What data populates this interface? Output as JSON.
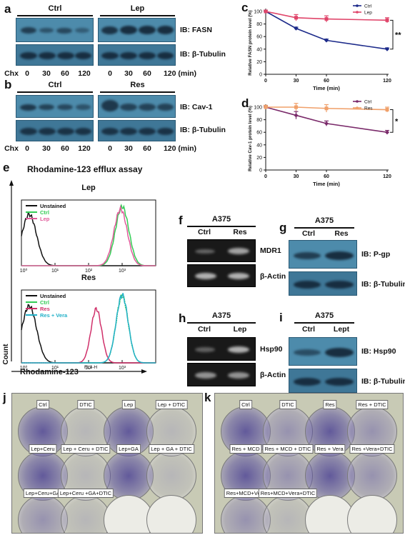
{
  "panels": {
    "a": {
      "letter": "a",
      "groups": [
        "Ctrl",
        "Lep"
      ],
      "labels": [
        "IB: FASN",
        "IB: β-Tubulin"
      ],
      "chx": "Chx",
      "lanes": [
        "0",
        "30",
        "60",
        "120",
        "0",
        "30",
        "60",
        "120 (min)"
      ]
    },
    "b": {
      "letter": "b",
      "groups": [
        "Ctrl",
        "Res"
      ],
      "labels": [
        "IB: Cav-1",
        "IB: β-Tubulin"
      ],
      "chx": "Chx",
      "lanes": [
        "0",
        "30",
        "60",
        "120",
        "0",
        "30",
        "60",
        "120 (min)"
      ]
    },
    "e": {
      "letter": "e",
      "title": "Rhodamine-123 efflux assay",
      "top_title": "Lep",
      "bottom_title": "Res",
      "ylabel": "Count",
      "xlabel": "Rhodamine-123",
      "fl_label": "FL1-H",
      "ticks_top": [
        "10⁰",
        "10¹",
        "10²",
        "10³"
      ],
      "ticks_bottom": [
        "10⁰",
        "10¹",
        "10²",
        "10³"
      ]
    },
    "f": {
      "letter": "f",
      "cell": "A375",
      "lanes": [
        "Ctrl",
        "Res"
      ],
      "labels": [
        "MDR1",
        "β-Actin"
      ]
    },
    "g": {
      "letter": "g",
      "cell": "A375",
      "lanes": [
        "Ctrl",
        "Res"
      ],
      "labels": [
        "IB: P-gp",
        "IB: β-Tubulin"
      ]
    },
    "h": {
      "letter": "h",
      "cell": "A375",
      "lanes": [
        "Ctrl",
        "Lep"
      ],
      "labels": [
        "Hsp90",
        "β-Actin"
      ]
    },
    "i": {
      "letter": "i",
      "cell": "A375",
      "lanes": [
        "Ctrl",
        "Lept"
      ],
      "labels": [
        "IB: Hsp90",
        "IB: β-Tubulin"
      ]
    },
    "j": {
      "letter": "j",
      "wells": [
        [
          "Ctrl",
          "DTIC",
          "Lep",
          "Lep + DTIC"
        ],
        [
          "Lep+Ceru",
          "Lep + Ceru + DTIC",
          "Lep+GA",
          "Lep + GA + DTIC"
        ],
        [
          "Lep+Ceru+GA",
          "Lep+Ceru +GA+DTIC",
          "",
          ""
        ]
      ]
    },
    "k": {
      "letter": "k",
      "wells": [
        [
          "Ctrl",
          "DTIC",
          "Res",
          "Res + DTIC"
        ],
        [
          "Res + MCD",
          "Res + MCD + DTIC",
          "Res + Vera",
          "Res +Vera+DTIC"
        ],
        [
          "Res+MCD+Vera",
          "Res+MCD+Vera+DTIC",
          "",
          ""
        ]
      ]
    }
  },
  "colors": {
    "ctrl_line": "#1c2a8a",
    "lep_line": "#e0456a",
    "ctrl2_line": "#7a2a6a",
    "res_line": "#f0a06a",
    "unstained": "#111111",
    "ctrl_hist": "#33cc55",
    "lep_hist": "#e05a9a",
    "res_hist": "#d0306a",
    "vera_hist": "#22b0c8"
  },
  "chart_data": [
    {
      "id": "c",
      "letter": "c",
      "type": "line",
      "ylabel": "Relative FASN protein level (%)",
      "xlabel": "Time (min)",
      "x": [
        0,
        30,
        60,
        120
      ],
      "xticks": [
        0,
        30,
        60,
        120
      ],
      "yticks": [
        0,
        20,
        40,
        60,
        80,
        100
      ],
      "ylim": [
        0,
        100
      ],
      "xlim": [
        0,
        120
      ],
      "annotation": "**",
      "legend": "top-right",
      "series": [
        {
          "name": "Ctrl",
          "values": [
            100,
            73,
            54,
            40
          ],
          "err": [
            2,
            2,
            2,
            2
          ],
          "color": "#1c2a8a",
          "marker": "diamond"
        },
        {
          "name": "Lep",
          "values": [
            100,
            90,
            88,
            86
          ],
          "err": [
            2,
            5,
            5,
            4
          ],
          "color": "#e0456a",
          "marker": "square"
        }
      ]
    },
    {
      "id": "d",
      "letter": "d",
      "type": "line",
      "ylabel": "Relative Cav-1 protein level (%)",
      "xlabel": "Time (min)",
      "x": [
        0,
        30,
        60,
        120
      ],
      "xticks": [
        0,
        30,
        60,
        120
      ],
      "yticks": [
        0,
        20,
        40,
        60,
        80,
        100
      ],
      "ylim": [
        0,
        100
      ],
      "xlim": [
        0,
        120
      ],
      "annotation": "*",
      "legend": "top-right",
      "series": [
        {
          "name": "Ctrl",
          "values": [
            100,
            87,
            74,
            60
          ],
          "err": [
            2,
            6,
            4,
            3
          ],
          "color": "#7a2a6a",
          "marker": "diamond"
        },
        {
          "name": "Res",
          "values": [
            100,
            100,
            98,
            96
          ],
          "err": [
            3,
            6,
            6,
            4
          ],
          "color": "#f0a06a",
          "marker": "square"
        }
      ]
    },
    {
      "id": "e_top",
      "type": "histogram",
      "xscale": "log",
      "xlim": [
        1,
        10000
      ],
      "legend": "top-left",
      "series": [
        {
          "name": "Unstained",
          "peak": 1.7,
          "width": 0.22,
          "height": 0.78,
          "color": "#111111"
        },
        {
          "name": "Ctrl",
          "peak": 1000,
          "width": 0.2,
          "height": 0.9,
          "color": "#33cc55"
        },
        {
          "name": "Lep",
          "peak": 900,
          "width": 0.2,
          "height": 0.86,
          "color": "#e05a9a"
        }
      ]
    },
    {
      "id": "e_bottom",
      "type": "histogram",
      "xscale": "log",
      "xlim": [
        1,
        10000
      ],
      "legend": "top-left",
      "series": [
        {
          "name": "Unstained",
          "peak": 1.7,
          "width": 0.22,
          "height": 0.78,
          "color": "#111111"
        },
        {
          "name": "Ctrl",
          "peak": 1000,
          "width": 0.18,
          "height": 0.92,
          "color": "#33cc55"
        },
        {
          "name": "Res",
          "peak": 170,
          "width": 0.16,
          "height": 0.74,
          "color": "#d0306a"
        },
        {
          "name": "Res + Vera",
          "peak": 1000,
          "width": 0.18,
          "height": 0.93,
          "color": "#22b0c8"
        }
      ]
    }
  ]
}
